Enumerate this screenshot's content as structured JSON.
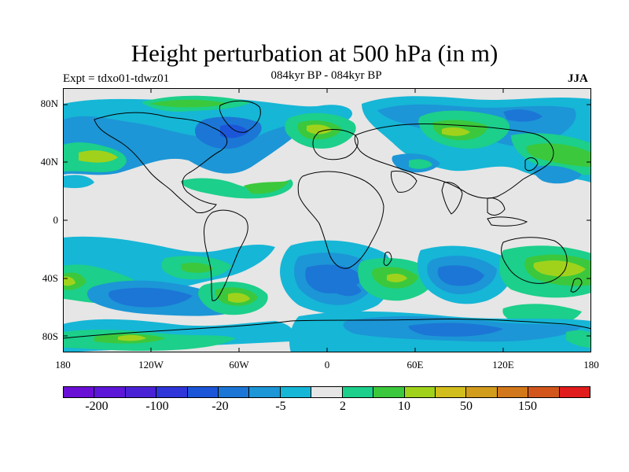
{
  "title": "Height perturbation at 500 hPa (in m)",
  "subtitle_left": "Expt = tdxo01-tdwz01",
  "subtitle_center": "084kyr BP - 084kyr BP",
  "subtitle_right": "JJA",
  "lat_labels": [
    "80N",
    "40N",
    "0",
    "40S",
    "80S"
  ],
  "lon_labels": [
    "180",
    "120W",
    "60W",
    "0",
    "60E",
    "120E",
    "180"
  ],
  "colorbar": {
    "colors": [
      "#6a0fd6",
      "#5c16d8",
      "#4a22d6",
      "#2e35d9",
      "#1c56d8",
      "#1c76d6",
      "#1c96d6",
      "#16b6d6",
      "#e6e6e6",
      "#1ccf8a",
      "#3cc83c",
      "#a0d21c",
      "#d2be1c",
      "#d29c1c",
      "#d2781c",
      "#d2561c",
      "#e01c1c"
    ],
    "tick_labels": [
      "-200",
      "-100",
      "-20",
      "-5",
      "2",
      "10",
      "50",
      "150"
    ]
  },
  "fill_colors": {
    "background": "#e6e6e6",
    "light_blue": "#16b6d6",
    "mid_blue": "#1c96d6",
    "blue": "#1c76d6",
    "dark_blue": "#1c56d8",
    "light_green": "#1ccf8a",
    "green": "#3cc83c",
    "yellow_green": "#a0d21c",
    "coastline": "#000000"
  }
}
